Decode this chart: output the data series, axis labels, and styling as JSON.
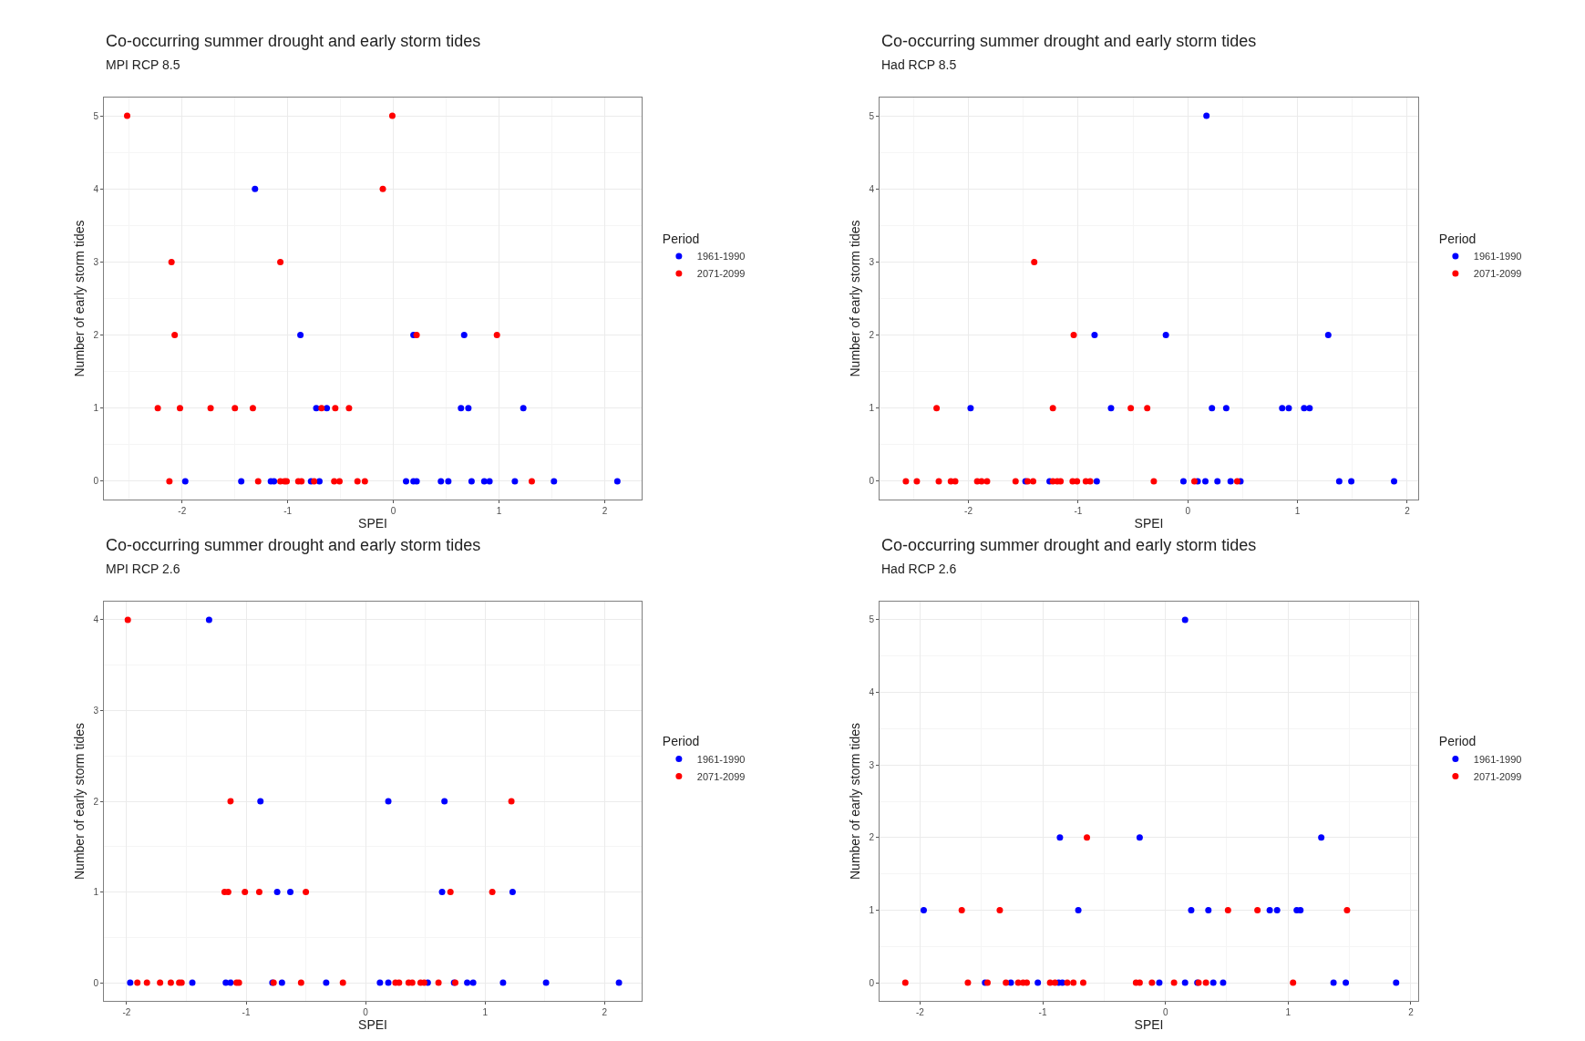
{
  "chart_data": [
    {
      "type": "scatter",
      "title": "Co-occurring summer drought and early storm tides",
      "subtitle": "MPI RCP 8.5",
      "xlabel": "SPEI",
      "ylabel": "Number of early storm tides",
      "legend_title": "Period",
      "legend": "right",
      "grid": true,
      "marker": "circle",
      "xlim": [
        -2.74,
        2.35
      ],
      "ylim": [
        -0.25,
        5.25
      ],
      "xticks": [
        -2,
        -1,
        0,
        1,
        2
      ],
      "yticks": [
        0,
        1,
        2,
        3,
        4,
        5
      ],
      "series": [
        {
          "name": "1961-1990",
          "color": "#0000ff",
          "x": [
            -1.31,
            -0.88,
            0.19,
            0.67,
            -0.73,
            -0.63,
            0.64,
            0.71,
            1.23,
            -1.97,
            -1.44,
            -1.16,
            -1.13,
            -0.78,
            -0.7,
            0.12,
            0.19,
            0.22,
            0.45,
            0.52,
            0.74,
            0.86,
            0.91,
            1.15,
            1.52,
            2.12
          ],
          "values": [
            4,
            2,
            2,
            2,
            1,
            1,
            1,
            1,
            1,
            0,
            0,
            0,
            0,
            0,
            0,
            0,
            0,
            0,
            0,
            0,
            0,
            0,
            0,
            0,
            0,
            0
          ]
        },
        {
          "name": "2071-2099",
          "color": "#ff0000",
          "x": [
            -2.52,
            -0.01,
            -0.1,
            -2.1,
            -1.07,
            -2.07,
            0.22,
            0.98,
            -2.23,
            -2.02,
            -1.73,
            -1.5,
            -1.33,
            -0.68,
            -0.55,
            -0.42,
            -2.12,
            -1.28,
            -1.07,
            -1.03,
            -1.01,
            -0.9,
            -0.87,
            -0.75,
            -0.56,
            -0.51,
            -0.34,
            -0.27,
            1.31
          ],
          "values": [
            5,
            5,
            4,
            3,
            3,
            2,
            2,
            2,
            1,
            1,
            1,
            1,
            1,
            1,
            1,
            1,
            0,
            0,
            0,
            0,
            0,
            0,
            0,
            0,
            0,
            0,
            0,
            0,
            0
          ]
        }
      ]
    },
    {
      "type": "scatter",
      "title": "Co-occurring summer drought and early storm tides",
      "subtitle": "Had RCP 8.5",
      "xlabel": "SPEI",
      "ylabel": "Number of early storm tides",
      "legend_title": "Period",
      "legend": "right",
      "grid": true,
      "marker": "circle",
      "xlim": [
        -2.81,
        2.1
      ],
      "ylim": [
        -0.25,
        5.25
      ],
      "xticks": [
        -2,
        -1,
        0,
        1,
        2
      ],
      "yticks": [
        0,
        1,
        2,
        3,
        4,
        5
      ],
      "series": [
        {
          "name": "1961-1990",
          "color": "#0000ff",
          "x": [
            0.17,
            -0.85,
            -0.2,
            1.28,
            -1.98,
            -0.7,
            0.22,
            0.35,
            0.86,
            0.92,
            1.06,
            1.11,
            -1.48,
            -1.26,
            -0.83,
            -0.04,
            0.09,
            0.16,
            0.27,
            0.39,
            0.48,
            1.38,
            1.49,
            1.88
          ],
          "values": [
            5,
            2,
            2,
            2,
            1,
            1,
            1,
            1,
            1,
            1,
            1,
            1,
            0,
            0,
            0,
            0,
            0,
            0,
            0,
            0,
            0,
            0,
            0,
            0
          ]
        },
        {
          "name": "2071-2099",
          "color": "#ff0000",
          "x": [
            -1.4,
            -1.04,
            -2.29,
            -1.23,
            -0.52,
            -0.37,
            -2.57,
            -2.47,
            -2.27,
            -2.16,
            -2.12,
            -1.92,
            -1.88,
            -1.83,
            -1.57,
            -1.46,
            -1.41,
            -1.23,
            -1.19,
            -1.16,
            -1.05,
            -1.01,
            -0.93,
            -0.89,
            -0.31,
            0.06,
            0.45
          ],
          "values": [
            3,
            2,
            1,
            1,
            1,
            1,
            0,
            0,
            0,
            0,
            0,
            0,
            0,
            0,
            0,
            0,
            0,
            0,
            0,
            0,
            0,
            0,
            0,
            0,
            0,
            0,
            0
          ]
        }
      ]
    },
    {
      "type": "scatter",
      "title": "Co-occurring summer drought and early storm tides",
      "subtitle": "MPI RCP 2.6",
      "xlabel": "SPEI",
      "ylabel": "Number of early storm tides",
      "legend_title": "Period",
      "legend": "right",
      "grid": true,
      "marker": "circle",
      "xlim": [
        -2.19,
        2.31
      ],
      "ylim": [
        -0.2,
        4.2
      ],
      "xticks": [
        -2,
        -1,
        0,
        1,
        2
      ],
      "yticks": [
        0,
        1,
        2,
        3,
        4
      ],
      "series": [
        {
          "name": "1961-1990",
          "color": "#0000ff",
          "x": [
            -1.31,
            -0.88,
            0.19,
            0.66,
            -0.74,
            -0.63,
            0.64,
            1.23,
            -1.97,
            -1.45,
            -1.17,
            -1.13,
            -0.78,
            -0.7,
            -0.33,
            0.12,
            0.19,
            0.52,
            0.74,
            0.85,
            0.9,
            1.15,
            1.51,
            2.12
          ],
          "values": [
            4,
            2,
            2,
            2,
            1,
            1,
            1,
            1,
            0,
            0,
            0,
            0,
            0,
            0,
            0,
            0,
            0,
            0,
            0,
            0,
            0,
            0,
            0,
            0
          ]
        },
        {
          "name": "2071-2099",
          "color": "#ff0000",
          "x": [
            -1.99,
            -1.13,
            1.22,
            -1.18,
            -1.15,
            -1.01,
            -0.89,
            -0.5,
            0.71,
            1.06,
            -1.91,
            -1.83,
            -1.72,
            -1.63,
            -1.56,
            -1.54,
            -1.08,
            -1.06,
            -0.77,
            -0.54,
            -0.19,
            0.25,
            0.28,
            0.36,
            0.39,
            0.46,
            0.49,
            0.61,
            0.75
          ],
          "values": [
            4,
            2,
            2,
            1,
            1,
            1,
            1,
            1,
            1,
            1,
            0,
            0,
            0,
            0,
            0,
            0,
            0,
            0,
            0,
            0,
            0,
            0,
            0,
            0,
            0,
            0,
            0,
            0,
            0
          ]
        }
      ]
    },
    {
      "type": "scatter",
      "title": "Co-occurring summer drought and early storm tides",
      "subtitle": "Had RCP 2.6",
      "xlabel": "SPEI",
      "ylabel": "Number of early storm tides",
      "legend_title": "Period",
      "legend": "right",
      "grid": true,
      "marker": "circle",
      "xlim": [
        -2.33,
        2.06
      ],
      "ylim": [
        -0.25,
        5.25
      ],
      "xticks": [
        -2,
        -1,
        0,
        1,
        2
      ],
      "yticks": [
        0,
        1,
        2,
        3,
        4,
        5
      ],
      "series": [
        {
          "name": "1961-1990",
          "color": "#0000ff",
          "x": [
            0.16,
            -0.86,
            -0.21,
            1.27,
            -1.97,
            -0.71,
            0.21,
            0.35,
            0.85,
            0.91,
            1.07,
            1.1,
            -1.47,
            -1.26,
            -1.04,
            -0.87,
            -0.84,
            -0.05,
            0.16,
            0.26,
            0.39,
            0.47,
            1.37,
            1.47,
            1.88
          ],
          "values": [
            5,
            2,
            2,
            2,
            1,
            1,
            1,
            1,
            1,
            1,
            1,
            1,
            0,
            0,
            0,
            0,
            0,
            0,
            0,
            0,
            0,
            0,
            0,
            0,
            0
          ]
        },
        {
          "name": "2071-2099",
          "color": "#ff0000",
          "x": [
            -0.64,
            -1.66,
            -1.35,
            0.51,
            0.75,
            1.48,
            -2.12,
            -1.61,
            -1.45,
            -1.3,
            -1.2,
            -1.16,
            -1.13,
            -0.94,
            -0.9,
            -0.8,
            -0.75,
            -0.67,
            -0.24,
            -0.21,
            -0.11,
            0.07,
            0.27,
            0.33,
            1.04
          ],
          "values": [
            2,
            1,
            1,
            1,
            1,
            1,
            0,
            0,
            0,
            0,
            0,
            0,
            0,
            0,
            0,
            0,
            0,
            0,
            0,
            0,
            0,
            0,
            0,
            0,
            0
          ]
        }
      ]
    }
  ]
}
